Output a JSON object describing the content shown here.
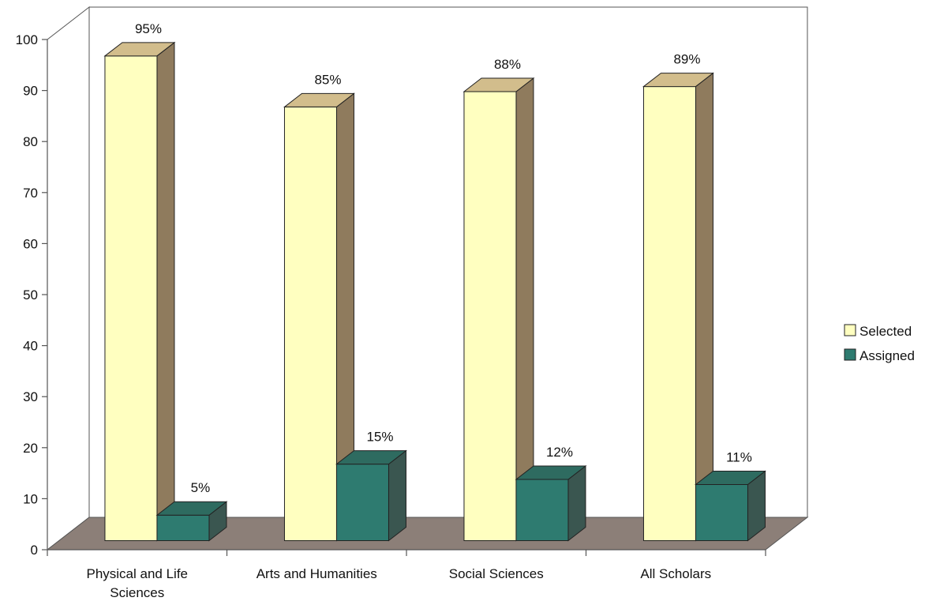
{
  "chart_data": {
    "type": "bar",
    "categories": [
      [
        "Physical and Life",
        "Sciences"
      ],
      [
        "Arts and Humanities"
      ],
      [
        "Social Sciences"
      ],
      [
        "All Scholars"
      ]
    ],
    "series": [
      {
        "name": "Selected",
        "values": [
          95,
          85,
          88,
          89
        ],
        "labels": [
          "95%",
          "85%",
          "88%",
          "89%"
        ],
        "color": "#FFFFC0"
      },
      {
        "name": "Assigned",
        "values": [
          5,
          15,
          12,
          11
        ],
        "labels": [
          "5%",
          "15%",
          "12%",
          "11%"
        ],
        "color": "#2E7B70"
      }
    ],
    "y_ticks": [
      "0",
      "10",
      "20",
      "30",
      "40",
      "50",
      "60",
      "70",
      "80",
      "90",
      "100"
    ],
    "ylim": [
      0,
      100
    ],
    "three_d": true,
    "grid": false,
    "legend_position": "right",
    "colors": {
      "floor": "#8C7F78",
      "selected_side": "#8F7B5D",
      "selected_top": "#D2BD8C",
      "assigned_side": "#3A5650",
      "assigned_top": "#2E6B60",
      "axis": "#555555",
      "wall": "#8C7F78"
    }
  }
}
